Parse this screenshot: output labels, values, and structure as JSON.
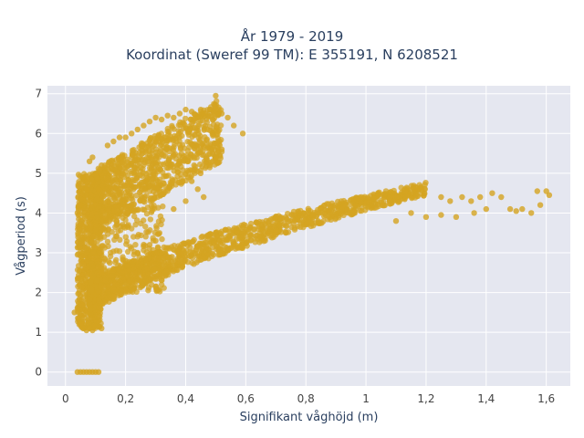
{
  "chart_data": {
    "type": "scatter",
    "title": "År 1979 - 2019",
    "subtitle": "Koordinat (Sweref 99 TM): E 355191, N 6208521",
    "xlabel": "Signifikant våghöjd (m)",
    "ylabel": "Vågperiod (s)",
    "xlim": [
      -0.06,
      1.68
    ],
    "ylim": [
      -0.35,
      7.2
    ],
    "x_ticks": [
      0,
      0.2,
      0.4,
      0.6,
      0.8,
      1,
      1.2,
      1.4,
      1.6
    ],
    "x_tick_labels": [
      "0",
      "0,2",
      "0,4",
      "0,6",
      "0,8",
      "1",
      "1,2",
      "1,4",
      "1,6"
    ],
    "y_ticks": [
      0,
      1,
      2,
      3,
      4,
      5,
      6,
      7
    ],
    "y_tick_labels": [
      "0",
      "1",
      "2",
      "3",
      "4",
      "5",
      "6",
      "7"
    ],
    "grid": true,
    "point_color": "#d4a421",
    "plot_bgcolor": "#e5e7f0",
    "series": [
      {
        "points": [
          [
            0.04,
            0
          ],
          [
            0.05,
            0
          ],
          [
            0.06,
            0
          ],
          [
            0.07,
            0
          ],
          [
            0.08,
            0
          ],
          [
            0.09,
            0
          ],
          [
            0.1,
            0
          ],
          [
            0.11,
            0
          ],
          [
            0.03,
            1.5
          ],
          [
            0.04,
            1.6
          ],
          [
            0.05,
            1.2
          ],
          [
            0.06,
            1.1
          ],
          [
            0.07,
            1.05
          ],
          [
            0.08,
            1.1
          ],
          [
            0.09,
            1.05
          ],
          [
            0.1,
            1.15
          ],
          [
            0.12,
            1.1
          ],
          [
            0.04,
            4.0
          ],
          [
            0.05,
            4.2
          ],
          [
            0.06,
            4.9
          ],
          [
            0.07,
            4.6
          ],
          [
            0.08,
            5.3
          ],
          [
            0.09,
            5.4
          ],
          [
            0.1,
            5.0
          ],
          [
            0.11,
            4.6
          ],
          [
            0.12,
            5.2
          ],
          [
            0.14,
            5.7
          ],
          [
            0.16,
            5.8
          ],
          [
            0.18,
            5.9
          ],
          [
            0.2,
            5.9
          ],
          [
            0.22,
            6.0
          ],
          [
            0.24,
            6.1
          ],
          [
            0.26,
            6.2
          ],
          [
            0.28,
            6.3
          ],
          [
            0.3,
            6.4
          ],
          [
            0.32,
            6.35
          ],
          [
            0.34,
            6.45
          ],
          [
            0.36,
            6.4
          ],
          [
            0.38,
            6.5
          ],
          [
            0.4,
            6.6
          ],
          [
            0.42,
            6.55
          ],
          [
            0.44,
            6.4
          ],
          [
            0.46,
            6.5
          ],
          [
            0.48,
            6.6
          ],
          [
            0.5,
            6.95
          ],
          [
            0.52,
            6.5
          ],
          [
            0.54,
            6.4
          ],
          [
            0.56,
            6.2
          ],
          [
            0.59,
            6.0
          ],
          [
            0.42,
            4.8
          ],
          [
            0.45,
            5.0
          ],
          [
            0.48,
            5.2
          ],
          [
            0.5,
            5.4
          ],
          [
            0.52,
            5.6
          ],
          [
            0.46,
            4.4
          ],
          [
            0.44,
            4.6
          ],
          [
            0.4,
            4.3
          ],
          [
            0.36,
            4.1
          ],
          [
            0.3,
            3.3
          ],
          [
            0.28,
            3.2
          ],
          [
            0.24,
            3.0
          ],
          [
            0.2,
            2.8
          ],
          [
            0.16,
            2.6
          ],
          [
            0.12,
            2.5
          ],
          [
            1.25,
            4.4
          ],
          [
            1.28,
            4.3
          ],
          [
            1.32,
            4.4
          ],
          [
            1.35,
            4.3
          ],
          [
            1.38,
            4.4
          ],
          [
            1.42,
            4.5
          ],
          [
            1.45,
            4.4
          ],
          [
            1.48,
            4.1
          ],
          [
            1.5,
            4.05
          ],
          [
            1.52,
            4.1
          ],
          [
            1.55,
            4.0
          ],
          [
            1.58,
            4.2
          ],
          [
            1.6,
            4.55
          ],
          [
            1.61,
            4.45
          ],
          [
            1.57,
            4.55
          ],
          [
            1.4,
            4.1
          ],
          [
            1.36,
            4.0
          ],
          [
            1.3,
            3.9
          ],
          [
            1.25,
            3.95
          ],
          [
            1.2,
            3.9
          ],
          [
            1.15,
            4.0
          ],
          [
            1.1,
            3.8
          ]
        ]
      }
    ]
  }
}
